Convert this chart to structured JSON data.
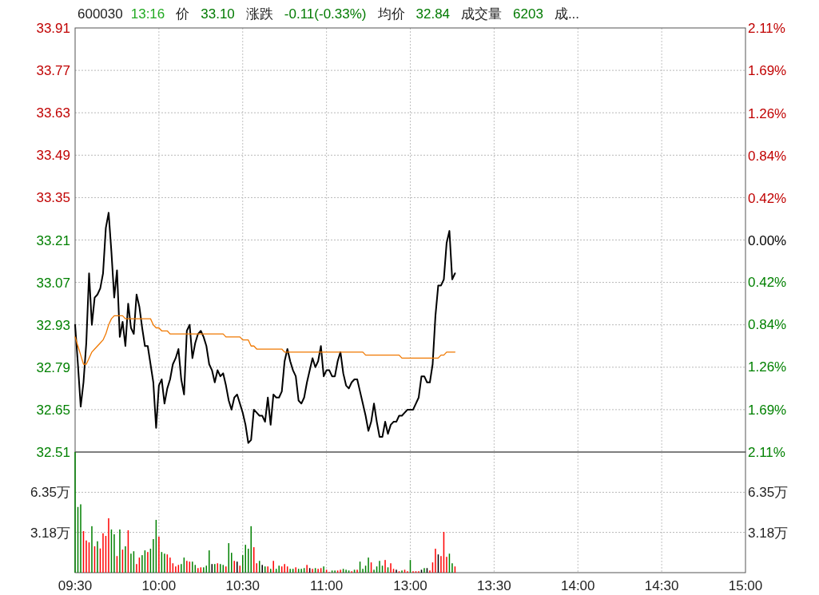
{
  "chart_data": [
    {
      "type": "line",
      "title": "600030",
      "annotations": [
        "13:16",
        "价",
        "33.10",
        "涨跌",
        "-0.11(-0.33%)",
        "均价",
        "32.84",
        "成交量",
        "6203",
        "成..."
      ],
      "categories": [
        null,
        null,
        null,
        null,
        null,
        null,
        null,
        null,
        null,
        null,
        null,
        null,
        null,
        null,
        null,
        null,
        null,
        null,
        null,
        null,
        null,
        null,
        null,
        null,
        null,
        null,
        null,
        null,
        null,
        null,
        null,
        null,
        null,
        null,
        null,
        null,
        null,
        null,
        null,
        null,
        null,
        null,
        null,
        null,
        null,
        null,
        null,
        null,
        null,
        null,
        null,
        null,
        null,
        null,
        null,
        null,
        null,
        null,
        null,
        null,
        null,
        null,
        null,
        null,
        null,
        null,
        null,
        null,
        null,
        null,
        null,
        null,
        null,
        null,
        null,
        null,
        null,
        null,
        null,
        null,
        null,
        null,
        null,
        null,
        null,
        null,
        null,
        null,
        null,
        null,
        null,
        null,
        null,
        null,
        null,
        null,
        null,
        null,
        null,
        null,
        null,
        null,
        null,
        null,
        null,
        null,
        null,
        null,
        null,
        null,
        null,
        null,
        null,
        null,
        null,
        null,
        null,
        null,
        null,
        null,
        null,
        null,
        null,
        null,
        null,
        null,
        null,
        null,
        null,
        null,
        null,
        null,
        null,
        null,
        null,
        null,
        null,
        null,
        null,
        null,
        null,
        null,
        null,
        null,
        null,
        null,
        null,
        null,
        null,
        null,
        null,
        null,
        null,
        null,
        null,
        null,
        null,
        null,
        null,
        null,
        null,
        null,
        null,
        null,
        null,
        null,
        null,
        null,
        null,
        null,
        null,
        null,
        null,
        null,
        null,
        null,
        null,
        null,
        null,
        null,
        null,
        null,
        null,
        null,
        null,
        null,
        null,
        null,
        null,
        null,
        null,
        null,
        null,
        null,
        null,
        null,
        null,
        null,
        null,
        null,
        null,
        null,
        null,
        null,
        null,
        null,
        null,
        null,
        null,
        null,
        null,
        null,
        null,
        null,
        null,
        null,
        null,
        null,
        null,
        null,
        null,
        null,
        null,
        null,
        null,
        null,
        null,
        null,
        null,
        null,
        null,
        null,
        null,
        null,
        null,
        null,
        null,
        null,
        null,
        null,
        null
      ],
      "ylim": [
        32.51,
        33.91
      ],
      "yticks": [
        32.51,
        32.65,
        32.79,
        32.93,
        33.07,
        33.21,
        33.35,
        33.49,
        33.63,
        33.77,
        33.91
      ],
      "y2lim": [
        -2.11,
        2.11
      ],
      "y2ticks": [
        {
          "value": -2.11,
          "label": "2.11%"
        },
        {
          "value": -1.69,
          "label": "1.69%"
        },
        {
          "value": -1.26,
          "label": "1.26%"
        },
        {
          "value": -0.84,
          "label": "0.84%"
        },
        {
          "value": -0.42,
          "label": "0.42%"
        },
        {
          "value": 0,
          "label": "0.00%"
        },
        {
          "value": 0.42,
          "label": "0.42%"
        },
        {
          "value": 0.84,
          "label": "0.84%"
        },
        {
          "value": 1.26,
          "label": "1.26%"
        },
        {
          "value": 1.69,
          "label": "1.69%"
        },
        {
          "value": 2.11,
          "label": "2.11%"
        }
      ],
      "tick_labels": "y",
      "grid": true,
      "series": [
        {
          "color": "#000000",
          "values": [
            32.93,
            32.8,
            32.66,
            32.74,
            32.87,
            33.1,
            32.93,
            33.02,
            33.03,
            33.05,
            33.1,
            33.25,
            33.3,
            33.17,
            33.02,
            33.11,
            32.89,
            32.94,
            32.86,
            33.0,
            32.92,
            32.9,
            33.03,
            32.99,
            32.92,
            32.86,
            32.86,
            32.8,
            32.74,
            32.59,
            32.73,
            32.75,
            32.67,
            32.72,
            32.75,
            32.8,
            32.82,
            32.85,
            32.75,
            32.7,
            32.91,
            32.93,
            32.82,
            32.87,
            32.9,
            32.91,
            32.89,
            32.86,
            32.8,
            32.78,
            32.74,
            32.78,
            32.76,
            32.77,
            32.73,
            32.68,
            32.65,
            32.69,
            32.7,
            32.67,
            32.64,
            32.6,
            32.54,
            32.55,
            32.65,
            32.64,
            32.63,
            32.63,
            32.61,
            32.69,
            32.6,
            32.7,
            32.69,
            32.69,
            32.71,
            32.81,
            32.85,
            32.81,
            32.78,
            32.76,
            32.68,
            32.67,
            32.69,
            32.74,
            32.78,
            32.82,
            32.79,
            32.81,
            32.86,
            32.76,
            32.78,
            32.78,
            32.76,
            32.76,
            32.81,
            32.84,
            32.77,
            32.73,
            32.72,
            32.74,
            32.75,
            32.75,
            32.71,
            32.67,
            32.63,
            32.58,
            32.61,
            32.67,
            32.61,
            32.56,
            32.56,
            32.61,
            32.57,
            32.6,
            32.61,
            32.61,
            32.63,
            32.63,
            32.64,
            32.65,
            32.65,
            32.65,
            32.67,
            32.69,
            32.76,
            32.76,
            32.74,
            32.74,
            32.8,
            32.96,
            33.06,
            33.06,
            33.08,
            33.2,
            33.24,
            33.08,
            33.1,
            null,
            null,
            null,
            null,
            null,
            null,
            null,
            null,
            null,
            null,
            null,
            null,
            null,
            null,
            null,
            null,
            null,
            null,
            null,
            null,
            null,
            null,
            null,
            null,
            null,
            null,
            null,
            null,
            null,
            null,
            null,
            null,
            null,
            null,
            null,
            null,
            null,
            null,
            null,
            null,
            null,
            null,
            null,
            null,
            null,
            null,
            null,
            null,
            null,
            null,
            null,
            null,
            null,
            null,
            null,
            null,
            null,
            null,
            null,
            null,
            null,
            null,
            null,
            null,
            null,
            null,
            null,
            null,
            null,
            null,
            null,
            null,
            null,
            null,
            null,
            null,
            null,
            null,
            null,
            null,
            null,
            null,
            null,
            null,
            null,
            null,
            null,
            null,
            null,
            null,
            null,
            null,
            null,
            null,
            null,
            null,
            null,
            null,
            null,
            null,
            null,
            null,
            null,
            null
          ]
        },
        {
          "color": "#f07800",
          "values": [
            32.89,
            32.86,
            32.83,
            32.8,
            32.8,
            32.82,
            32.84,
            32.85,
            32.86,
            32.87,
            32.88,
            32.9,
            32.93,
            32.95,
            32.96,
            32.96,
            32.96,
            32.96,
            32.95,
            32.95,
            32.95,
            32.95,
            32.95,
            32.95,
            32.95,
            32.95,
            32.95,
            32.95,
            32.93,
            32.92,
            32.92,
            32.91,
            32.91,
            32.91,
            32.9,
            32.9,
            32.9,
            32.9,
            32.9,
            32.9,
            32.9,
            32.9,
            32.9,
            32.9,
            32.9,
            32.9,
            32.9,
            32.9,
            32.9,
            32.9,
            32.9,
            32.9,
            32.9,
            32.9,
            32.89,
            32.89,
            32.89,
            32.89,
            32.89,
            32.89,
            32.88,
            32.88,
            32.88,
            32.86,
            32.86,
            32.85,
            32.85,
            32.85,
            32.85,
            32.85,
            32.85,
            32.85,
            32.85,
            32.85,
            32.85,
            32.84,
            32.84,
            32.84,
            32.84,
            32.84,
            32.84,
            32.84,
            32.84,
            32.84,
            32.84,
            32.84,
            32.84,
            32.84,
            32.84,
            32.84,
            32.84,
            32.84,
            32.84,
            32.84,
            32.84,
            32.84,
            32.84,
            32.84,
            32.84,
            32.84,
            32.84,
            32.84,
            32.84,
            32.84,
            32.83,
            32.83,
            32.83,
            32.83,
            32.83,
            32.83,
            32.83,
            32.83,
            32.83,
            32.83,
            32.83,
            32.83,
            32.83,
            32.82,
            32.82,
            32.82,
            32.82,
            32.82,
            32.82,
            32.82,
            32.82,
            32.82,
            32.82,
            32.82,
            32.82,
            32.82,
            32.82,
            32.83,
            32.83,
            32.84,
            32.84,
            32.84,
            32.84,
            null,
            null,
            null,
            null,
            null,
            null,
            null,
            null,
            null,
            null,
            null,
            null,
            null,
            null,
            null,
            null,
            null,
            null,
            null,
            null,
            null,
            null,
            null,
            null,
            null,
            null,
            null,
            null,
            null,
            null,
            null,
            null,
            null,
            null,
            null,
            null,
            null,
            null,
            null,
            null,
            null,
            null,
            null,
            null,
            null,
            null,
            null,
            null,
            null,
            null,
            null,
            null,
            null,
            null,
            null,
            null,
            null,
            null,
            null,
            null,
            null,
            null,
            null,
            null,
            null,
            null,
            null,
            null,
            null,
            null,
            null,
            null,
            null,
            null,
            null,
            null,
            null,
            null,
            null,
            null,
            null,
            null,
            null,
            null,
            null,
            null,
            null,
            null,
            null,
            null,
            null,
            null,
            null,
            null,
            null,
            null,
            null,
            null,
            null,
            null,
            null,
            null,
            null,
            null
          ]
        }
      ]
    },
    {
      "type": "bar",
      "categories": [
        "09:30",
        null,
        null,
        null,
        null,
        null,
        null,
        null,
        null,
        null,
        null,
        null,
        null,
        null,
        null,
        null,
        null,
        null,
        null,
        null,
        null,
        null,
        null,
        null,
        null,
        null,
        null,
        null,
        null,
        null,
        "10:00",
        null,
        null,
        null,
        null,
        null,
        null,
        null,
        null,
        null,
        null,
        null,
        null,
        null,
        null,
        null,
        null,
        null,
        null,
        null,
        null,
        null,
        null,
        null,
        null,
        null,
        null,
        null,
        null,
        null,
        "10:30",
        null,
        null,
        null,
        null,
        null,
        null,
        null,
        null,
        null,
        null,
        null,
        null,
        null,
        null,
        null,
        null,
        null,
        null,
        null,
        null,
        null,
        null,
        null,
        null,
        null,
        null,
        null,
        null,
        null,
        "11:00",
        null,
        null,
        null,
        null,
        null,
        null,
        null,
        null,
        null,
        null,
        null,
        null,
        null,
        null,
        null,
        null,
        null,
        null,
        null,
        null,
        null,
        null,
        null,
        null,
        null,
        null,
        null,
        null,
        null,
        "13:00",
        null,
        null,
        null,
        null,
        null,
        null,
        null,
        null,
        null,
        null,
        null,
        null,
        null,
        null,
        null,
        null,
        null,
        null,
        null,
        null,
        null,
        null,
        null,
        null,
        null,
        null,
        null,
        null,
        null,
        "13:30",
        null,
        null,
        null,
        null,
        null,
        null,
        null,
        null,
        null,
        null,
        null,
        null,
        null,
        null,
        null,
        null,
        null,
        null,
        null,
        null,
        null,
        null,
        null,
        null,
        null,
        null,
        null,
        null,
        null,
        "14:00",
        null,
        null,
        null,
        null,
        null,
        null,
        null,
        null,
        null,
        null,
        null,
        null,
        null,
        null,
        null,
        null,
        null,
        null,
        null,
        null,
        null,
        null,
        null,
        null,
        null,
        null,
        null,
        null,
        null,
        "14:30",
        null,
        null,
        null,
        null,
        null,
        null,
        null,
        null,
        null,
        null,
        null,
        null,
        null,
        null,
        null,
        null,
        null,
        null,
        null,
        null,
        null,
        null,
        null,
        null,
        null,
        null,
        null,
        null,
        null,
        "15:00"
      ],
      "ylim": [
        0,
        9.53
      ],
      "yticks": [
        {
          "value": 3.18,
          "label": "3.18万"
        },
        {
          "value": 6.35,
          "label": "6.35万"
        }
      ],
      "y2lim": [
        0,
        9.53
      ],
      "y2ticks": [
        {
          "value": 3.18,
          "label": "3.18万"
        },
        {
          "value": 6.35,
          "label": "6.35万"
        }
      ],
      "grid": true,
      "values": [
        9.53,
        5.19,
        5.4,
        3.28,
        2.54,
        2.39,
        3.67,
        2.08,
        2.48,
        1.91,
        3.11,
        2.9,
        4.3,
        3.41,
        3.03,
        1.31,
        3.41,
        1.82,
        2.08,
        3.35,
        1.5,
        1.69,
        0.68,
        1.19,
        1.38,
        1.76,
        1.63,
        1.89,
        2.65,
        4.17,
        2.84,
        1.63,
        1.5,
        1.44,
        1.19,
        0.74,
        0.49,
        0.61,
        0.68,
        1.19,
        0.93,
        0.87,
        0.87,
        0.61,
        0.36,
        0.42,
        0.42,
        0.55,
        1.76,
        0.68,
        0.68,
        0.74,
        0.68,
        0.61,
        0.49,
        2.33,
        1.57,
        0.93,
        0.87,
        0.55,
        1.38,
        2.2,
        1.89,
        3.67,
        2.01,
        0.74,
        0.93,
        0.61,
        0.49,
        0.49,
        0.3,
        0.93,
        0.3,
        0.55,
        0.49,
        0.68,
        0.49,
        0.3,
        0.3,
        0.42,
        0.3,
        0.3,
        0.36,
        0.61,
        0.36,
        0.3,
        0.36,
        0.3,
        0.36,
        0.49,
        0.23,
        0.05,
        0.17,
        0.17,
        0.17,
        0.23,
        0.3,
        0.23,
        0.17,
        0.11,
        0.23,
        0.23,
        0.87,
        0.3,
        0.55,
        1.19,
        0.81,
        0.23,
        0.49,
        0.93,
        0.55,
        1.0,
        0.42,
        0.74,
        0.3,
        0.23,
        0.11,
        0.17,
        0.23,
        0.11,
        1.0,
        0.11,
        0.11,
        0.11,
        0.23,
        0.36,
        0.36,
        0.17,
        0.81,
        1.89,
        1.44,
        1.31,
        3.22,
        1.25,
        1.5,
        0.74,
        0.49,
        null,
        null,
        null,
        null,
        null,
        null,
        null,
        null,
        null,
        null,
        null,
        null,
        null,
        null,
        null,
        null,
        null,
        null,
        null,
        null,
        null,
        null,
        null,
        null,
        null,
        null,
        null,
        null,
        null,
        null,
        null,
        null,
        null,
        null,
        null,
        null,
        null,
        null,
        null,
        null,
        null,
        null,
        null,
        null,
        null,
        null,
        null,
        null,
        null,
        null,
        null,
        null,
        null,
        null,
        null,
        null,
        null,
        null,
        null,
        null,
        null,
        null,
        null,
        null,
        null,
        null,
        null,
        null,
        null,
        null,
        null,
        null,
        null,
        null,
        null,
        null,
        null,
        null,
        null,
        null,
        null,
        null,
        null,
        null,
        null,
        null,
        null,
        null,
        null,
        null,
        null,
        null,
        null,
        null,
        null,
        null,
        null,
        null,
        null,
        null,
        null,
        null,
        null,
        null
      ],
      "colors": [
        "#008000",
        "#008000",
        "#008000",
        "#ff0000",
        "#ff0000",
        "#ff0000",
        "#008000",
        "#ff0000",
        "#008000",
        "#ff0000",
        "#ff0000",
        "#ff0000",
        "#ff0000",
        "#008000",
        "#008000",
        "#ff0000",
        "#008000",
        "#ff0000",
        "#008000",
        "#ff0000",
        "#008000",
        "#008000",
        "#ff0000",
        "#ff0000",
        "#008000",
        "#008000",
        "#ff0000",
        "#008000",
        "#008000",
        "#008000",
        "#ff0000",
        "#008000",
        "#008000",
        "#ff0000",
        "#ff0000",
        "#ff0000",
        "#ff0000",
        "#ff0000",
        "#008000",
        "#008000",
        "#ff0000",
        "#ff0000",
        "#008000",
        "#008000",
        "#ff0000",
        "#ff0000",
        "#008000",
        "#008000",
        "#008000",
        "#000000",
        "#008000",
        "#ff0000",
        "#008000",
        "#008000",
        "#ff0000",
        "#008000",
        "#008000",
        "#ff0000",
        "#000000",
        "#ff0000",
        "#008000",
        "#008000",
        "#008000",
        "#008000",
        "#ff0000",
        "#ff0000",
        "#008000",
        "#000000",
        "#008000",
        "#ff0000",
        "#008000",
        "#ff0000",
        "#008000",
        "#008000",
        "#ff0000",
        "#ff0000",
        "#ff0000",
        "#008000",
        "#008000",
        "#ff0000",
        "#008000",
        "#008000",
        "#008000",
        "#ff0000",
        "#000000",
        "#ff0000",
        "#008000",
        "#ff0000",
        "#ff0000",
        "#008000",
        "#ff0000",
        "#ff0000",
        "#008000",
        "#008000",
        "#ff0000",
        "#ff0000",
        "#008000",
        "#008000",
        "#008000",
        "#ff0000",
        "#008000",
        "#ff0000",
        "#008000",
        "#008000",
        "#008000",
        "#008000",
        "#ff0000",
        "#008000",
        "#008000",
        "#008000",
        "#008000",
        "#ff0000",
        "#008000",
        "#ff0000",
        "#ff0000",
        "#000000",
        "#ff0000",
        "#008000",
        "#ff0000",
        "#ff0000",
        "#008000",
        "#ff0000",
        "#ff0000",
        "#ff0000",
        "#000000",
        "#008000",
        "#000000",
        "#ff0000",
        "#ff0000",
        "#ff0000",
        "#000000",
        "#ff0000",
        "#ff0000",
        "#ff0000",
        "#008000",
        "#008000",
        "#ff0000",
        null,
        null,
        null,
        null,
        null,
        null,
        null,
        null,
        null,
        null,
        null,
        null,
        null,
        null,
        null,
        null,
        null,
        null,
        null,
        null,
        null,
        null,
        null,
        null,
        null,
        null,
        null,
        null,
        null,
        null,
        null,
        null,
        null,
        null,
        null,
        null,
        null,
        null,
        null,
        null,
        null,
        null,
        null,
        null,
        null,
        null,
        null,
        null,
        null,
        null,
        null,
        null,
        null,
        null,
        null,
        null,
        null,
        null,
        null,
        null,
        null,
        null,
        null,
        null,
        null,
        null,
        null,
        null,
        null,
        null,
        null,
        null,
        null,
        null,
        null,
        null,
        null,
        null,
        null,
        null,
        null,
        null,
        null,
        null,
        null,
        null,
        null,
        null,
        null,
        null,
        null,
        null,
        null,
        null,
        null,
        null,
        null,
        null,
        null,
        null,
        null,
        null,
        null,
        null
      ]
    }
  ]
}
